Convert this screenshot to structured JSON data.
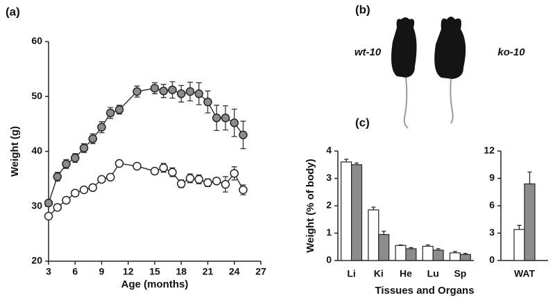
{
  "panel_b": {
    "panel_label": "(b)",
    "labels": [
      "wt-10",
      "ko-10"
    ]
  },
  "chart_data": [
    {
      "type": "line",
      "panel_label": "(a)",
      "xlabel": "Age (months)",
      "ylabel": "Weight (g)",
      "x": [
        3,
        4,
        5,
        6,
        7,
        8,
        9,
        10,
        11,
        13,
        15,
        16,
        17,
        18,
        19,
        20,
        21,
        22,
        23,
        24,
        25
      ],
      "xlim": [
        3,
        27
      ],
      "xticks": [
        3,
        6,
        9,
        12,
        15,
        18,
        21,
        24,
        27
      ],
      "ylim": [
        20,
        60
      ],
      "yticks": [
        20,
        30,
        40,
        50,
        60
      ],
      "series": [
        {
          "color": "#8c8c8c",
          "values": [
            30.6,
            35.4,
            37.7,
            38.8,
            40.6,
            42.3,
            44.4,
            47.0,
            47.6,
            50.9,
            51.5,
            51.0,
            51.2,
            50.5,
            50.9,
            50.5,
            49.0,
            46.1,
            46.1,
            45.2,
            43.0
          ],
          "errors": [
            0.5,
            0.8,
            0.8,
            0.8,
            0.8,
            0.9,
            1.0,
            1.0,
            0.8,
            1.0,
            1.0,
            1.2,
            1.5,
            1.5,
            1.7,
            2.0,
            2.0,
            2.3,
            2.2,
            2.5,
            2.5
          ]
        },
        {
          "color": "#ffffff",
          "values": [
            28.2,
            29.8,
            31.1,
            32.4,
            33.0,
            33.4,
            34.9,
            35.3,
            37.8,
            37.3,
            36.4,
            37.0,
            36.2,
            34.1,
            35.1,
            34.9,
            34.3,
            34.6,
            34.0,
            36.0,
            33.0
          ],
          "errors": [
            0.4,
            0.4,
            0.4,
            0.4,
            0.4,
            0.4,
            0.5,
            0.5,
            0.4,
            0.4,
            0.5,
            0.8,
            0.8,
            0.7,
            0.8,
            0.8,
            0.7,
            0.5,
            1.4,
            1.2,
            0.9
          ]
        }
      ]
    },
    {
      "type": "bar",
      "panel_label": "(c)",
      "xlabel": "Tissues and Organs",
      "ylabel": "Weight (% of body)",
      "categories": [
        "Li",
        "Ki",
        "He",
        "Lu",
        "Sp"
      ],
      "ylim": [
        0,
        4
      ],
      "yticks": [
        0,
        1,
        2,
        3,
        4
      ],
      "series": [
        {
          "color": "#ffffff",
          "values": [
            3.6,
            1.85,
            0.55,
            0.52,
            0.28
          ],
          "errors": [
            0.1,
            0.1,
            0.02,
            0.05,
            0.05
          ]
        },
        {
          "color": "#8c8c8c",
          "values": [
            3.5,
            0.95,
            0.43,
            0.38,
            0.22
          ],
          "errors": [
            0.06,
            0.12,
            0.04,
            0.05,
            0.04
          ]
        }
      ]
    },
    {
      "type": "bar",
      "categories": [
        "WAT"
      ],
      "ylim": [
        0,
        12
      ],
      "yticks": [
        0,
        3,
        6,
        9,
        12
      ],
      "series": [
        {
          "color": "#ffffff",
          "values": [
            3.4
          ],
          "errors": [
            0.45
          ]
        },
        {
          "color": "#8c8c8c",
          "values": [
            8.4
          ],
          "errors": [
            1.3
          ]
        }
      ]
    }
  ]
}
